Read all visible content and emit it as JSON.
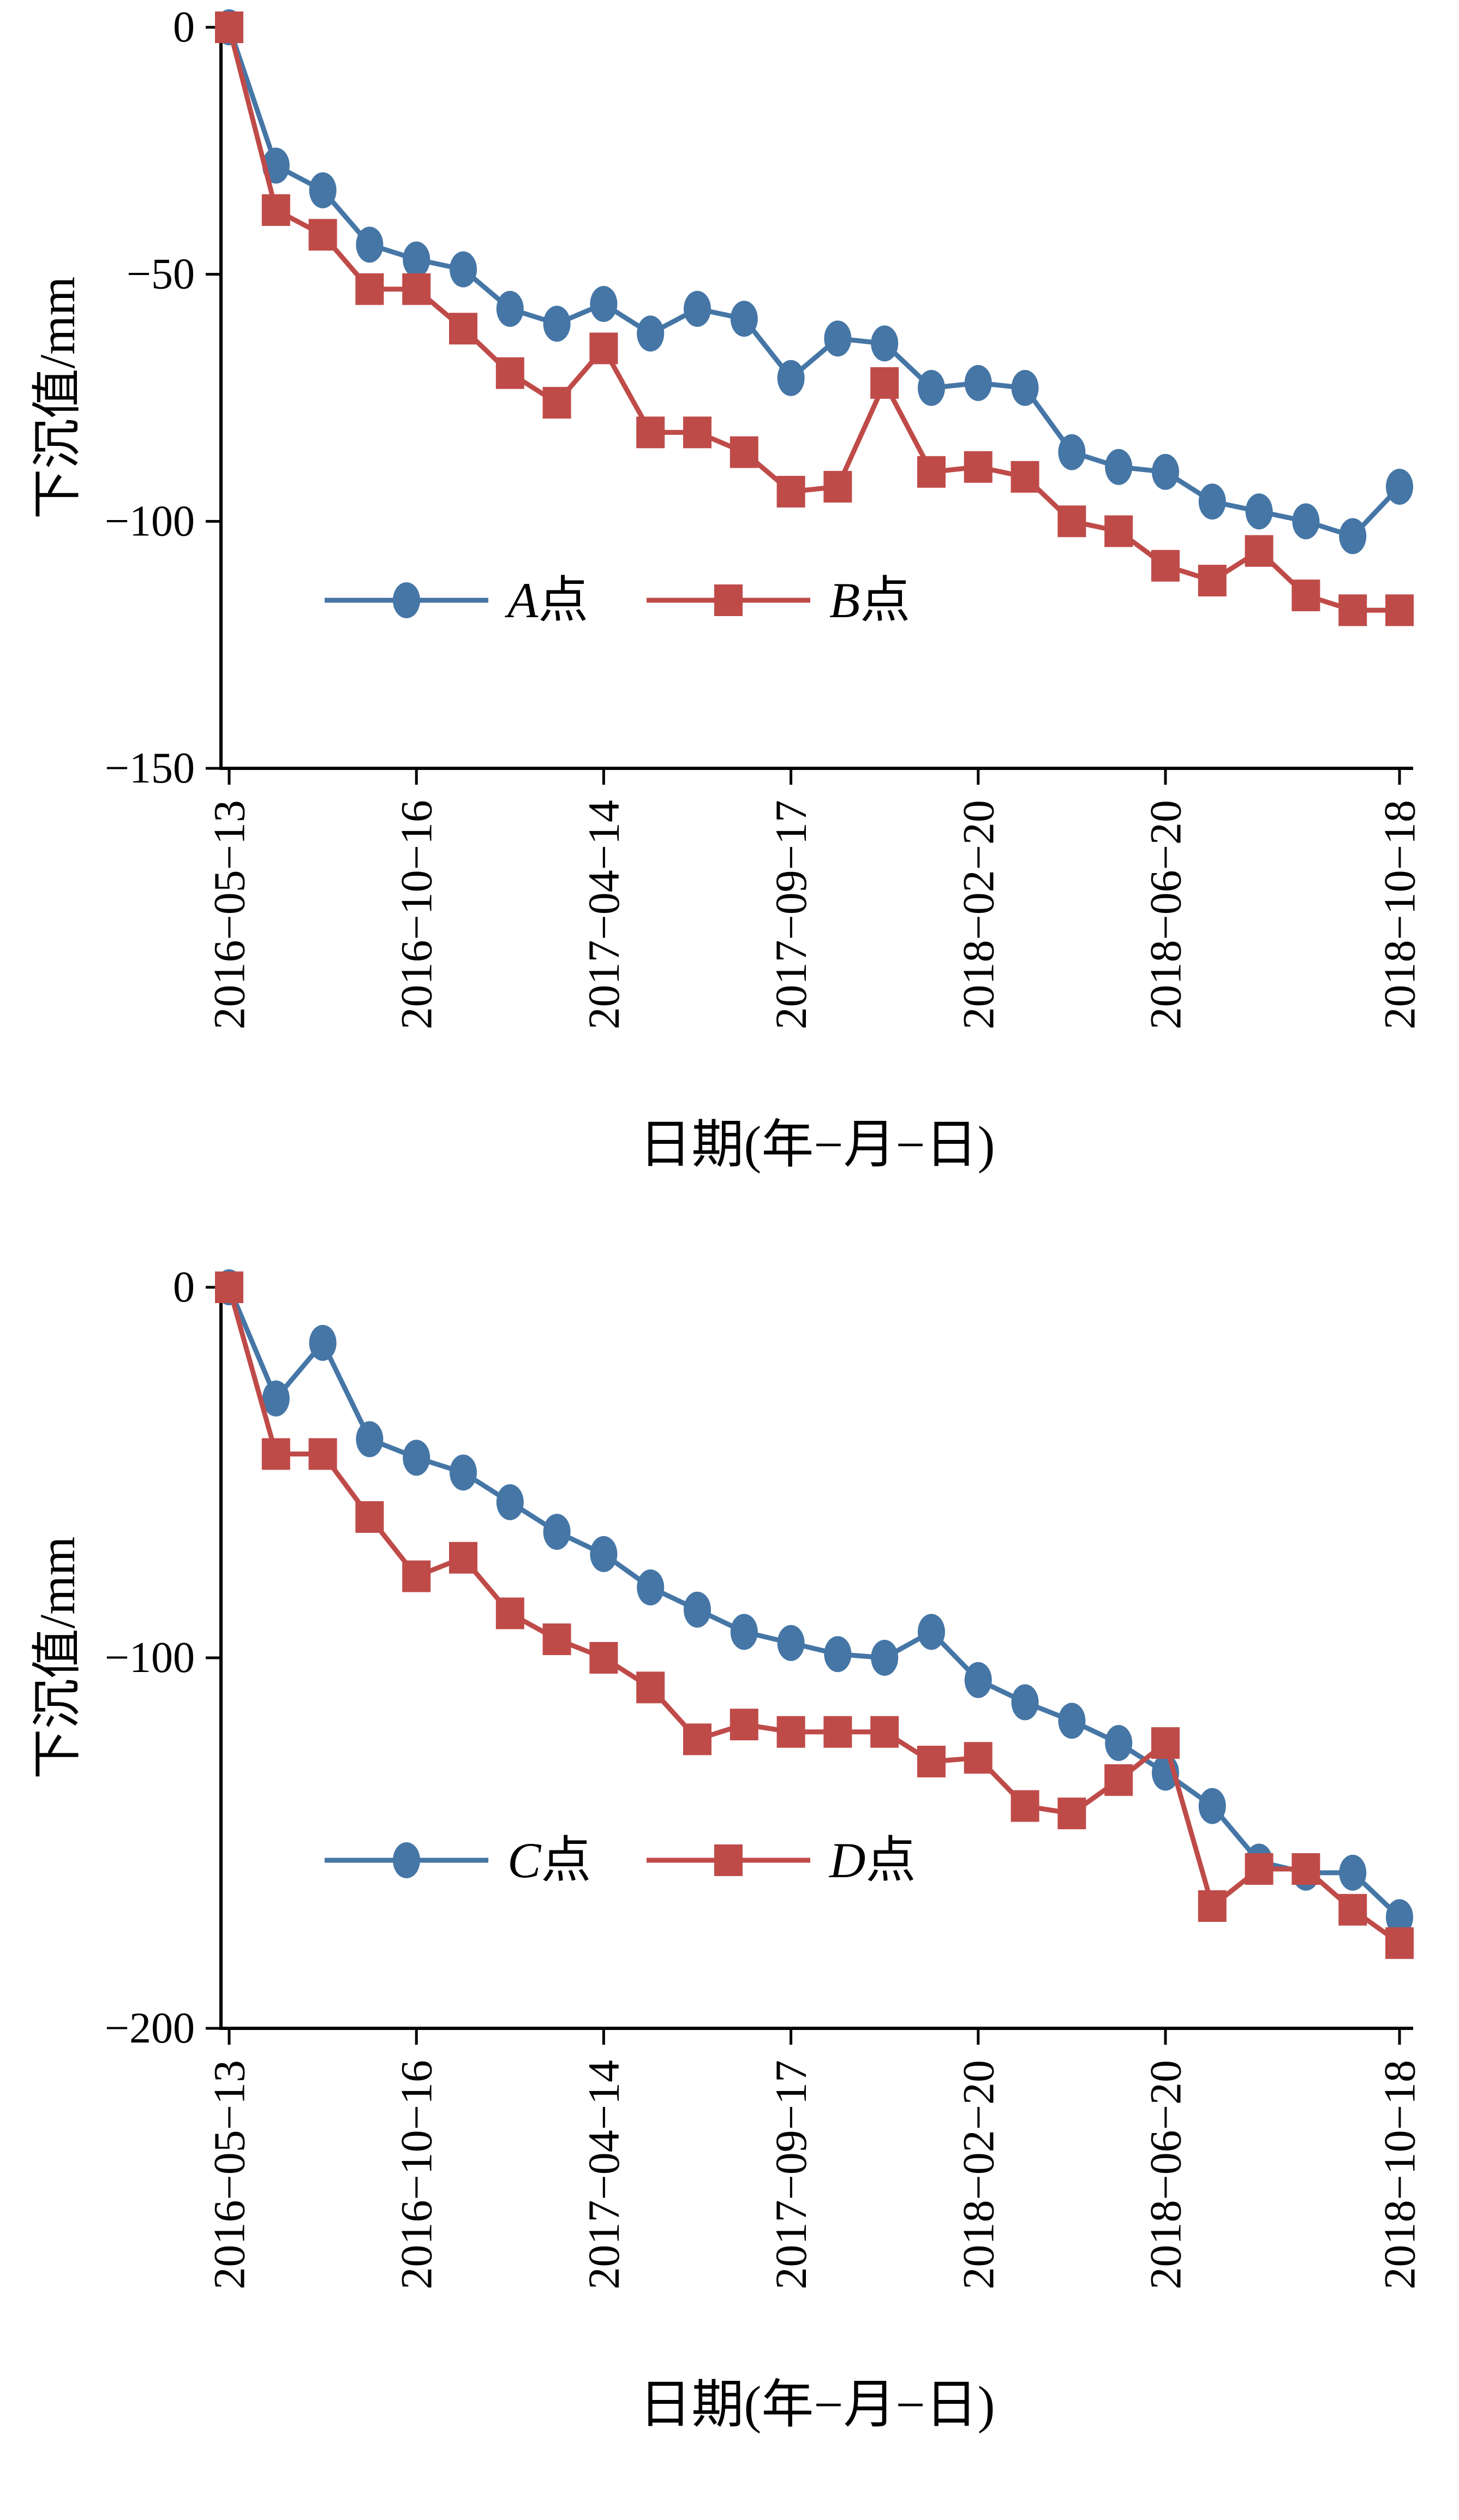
{
  "figure": {
    "background": "#ffffff",
    "axis_color": "#000000"
  },
  "chart_data": [
    {
      "type": "line",
      "title": "",
      "ylabel": "下沉值/mm",
      "xlabel": "日期(年−月−日)",
      "ylim": [
        -150,
        0
      ],
      "yticks": [
        "0",
        "−50",
        "−100",
        "−150"
      ],
      "ytick_values": [
        0,
        -50,
        -100,
        -150
      ],
      "x_tick_labels": [
        "2016−05−13",
        "2016−10−16",
        "2017−04−14",
        "2017−09−17",
        "2018−02−20",
        "2018−06−20",
        "2018−10−18"
      ],
      "x_tick_indices": [
        0,
        4,
        8,
        12,
        16,
        20,
        25
      ],
      "grid": false,
      "legend_position": "inside-lower-left",
      "series": [
        {
          "name": "A点",
          "letter": "A",
          "suffix": "点",
          "color": "#4576a6",
          "marker": "ellipse",
          "values": [
            0,
            -28,
            -33,
            -44,
            -47,
            -49,
            -57,
            -60,
            -56,
            -62,
            -57,
            -59,
            -71,
            -63,
            -64,
            -73,
            -72,
            -73,
            -86,
            -89,
            -90,
            -96,
            -98,
            -100,
            -103,
            -93
          ]
        },
        {
          "name": "B点",
          "letter": "B",
          "suffix": "点",
          "color": "#bf4b49",
          "marker": "square",
          "values": [
            0,
            -37,
            -42,
            -53,
            -53,
            -61,
            -70,
            -76,
            -65,
            -82,
            -82,
            -86,
            -94,
            -93,
            -72,
            -90,
            -89,
            -91,
            -100,
            -102,
            -109,
            -112,
            -106,
            -115,
            -118,
            -118
          ]
        }
      ]
    },
    {
      "type": "line",
      "title": "",
      "ylabel": "下沉值/mm",
      "xlabel": "日期(年−月−日)",
      "ylim": [
        -200,
        0
      ],
      "yticks": [
        "0",
        "−100",
        "−200"
      ],
      "ytick_values": [
        0,
        -100,
        -200
      ],
      "x_tick_labels": [
        "2016−05−13",
        "2016−10−16",
        "2017−04−14",
        "2017−09−17",
        "2018−02−20",
        "2018−06−20",
        "2018−10−18"
      ],
      "x_tick_indices": [
        0,
        4,
        8,
        12,
        16,
        20,
        25
      ],
      "grid": false,
      "legend_position": "inside-lower-left",
      "series": [
        {
          "name": "C点",
          "letter": "C",
          "suffix": "点",
          "color": "#4576a6",
          "marker": "ellipse",
          "values": [
            0,
            -30,
            -15,
            -41,
            -46,
            -50,
            -58,
            -66,
            -72,
            -81,
            -87,
            -93,
            -96,
            -99,
            -100,
            -93,
            -106,
            -112,
            -117,
            -123,
            -131,
            -140,
            -155,
            -158,
            -158,
            -170
          ]
        },
        {
          "name": "D点",
          "letter": "D",
          "suffix": "点",
          "color": "#bf4b49",
          "marker": "square",
          "values": [
            0,
            -45,
            -45,
            -62,
            -78,
            -73,
            -88,
            -95,
            -100,
            -108,
            -122,
            -118,
            -120,
            -120,
            -120,
            -128,
            -127,
            -140,
            -142,
            -133,
            -123,
            -167,
            -157,
            -157,
            -168,
            -177
          ]
        }
      ]
    }
  ]
}
